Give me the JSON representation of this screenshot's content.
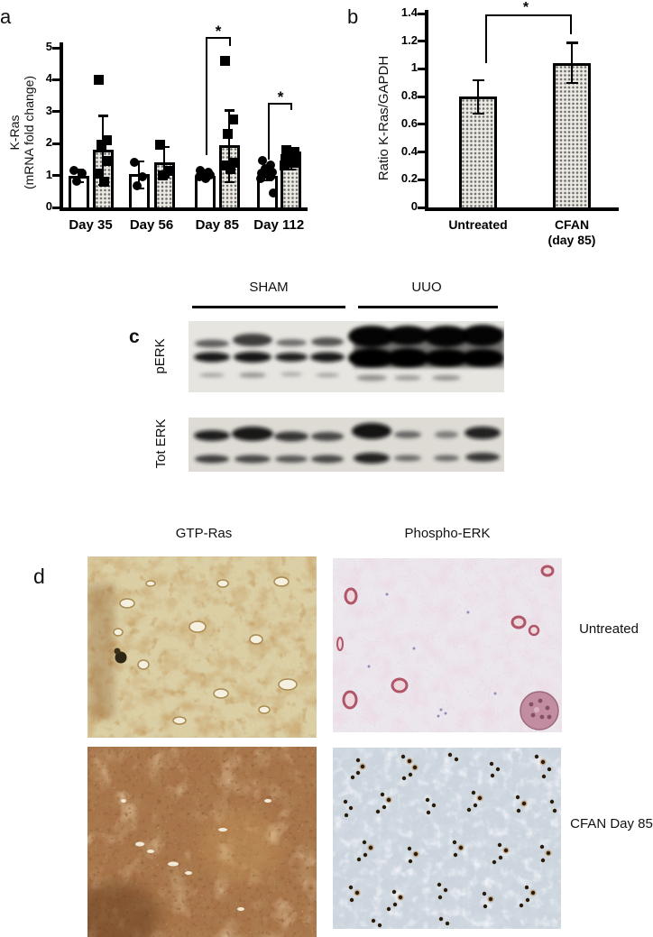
{
  "figure": {
    "panel_a": {
      "letter": "a"
    },
    "panel_b": {
      "letter": "b"
    },
    "panel_c": {
      "letter": "c",
      "group_labels": [
        "SHAM",
        "UUO"
      ],
      "blot_labels": [
        "pERK",
        "Tot ERK"
      ]
    },
    "panel_d": {
      "letter": "d",
      "column_headers": [
        "GTP-Ras",
        "Phospho-ERK"
      ],
      "row_labels": [
        "Untreated",
        "CFAN Day 85"
      ]
    }
  },
  "chart_data": [
    {
      "id": "panel_a",
      "type": "bar",
      "title": "",
      "ylabel": "K-Ras (mRNA fold change)",
      "ylabel_lines": [
        "K-Ras",
        "(mRNA fold change)"
      ],
      "ylim": [
        0,
        5
      ],
      "yticks": [
        0,
        1,
        2,
        3,
        4,
        5
      ],
      "categories": [
        "Day 35",
        "Day 56",
        "Day 85",
        "Day 112"
      ],
      "series": [
        {
          "name": "open bars (circles)",
          "style": "open",
          "marker": "circle",
          "means": [
            1.0,
            1.05,
            1.0,
            1.0
          ],
          "err_low": [
            0.8,
            0.6,
            0.88,
            0.85
          ],
          "err_high": [
            1.2,
            1.45,
            1.15,
            1.2
          ],
          "points": [
            [
              1.15,
              1.05,
              0.8
            ],
            [
              1.4,
              0.95,
              0.65
            ],
            [
              1.15,
              1.1,
              1.05,
              1.0,
              0.95,
              0.9
            ],
            [
              1.45,
              1.3,
              1.2,
              1.1,
              1.05,
              1.0,
              0.95,
              0.9,
              0.45
            ]
          ]
        },
        {
          "name": "stippled bars (squares)",
          "style": "stippled",
          "marker": "square",
          "means": [
            1.8,
            1.4,
            1.95,
            1.45
          ],
          "err_low": [
            0.72,
            0.95,
            0.8,
            1.2
          ],
          "err_high": [
            2.88,
            1.9,
            3.05,
            1.7
          ],
          "points": [
            [
              4.0,
              2.1,
              1.95,
              1.45,
              1.05,
              0.8
            ],
            [
              1.95,
              1.15,
              1.0
            ],
            [
              4.6,
              2.75,
              2.3,
              1.4,
              1.3,
              1.2
            ],
            [
              1.8,
              1.75,
              1.7,
              1.6,
              1.5,
              1.45,
              1.4,
              1.3
            ]
          ]
        }
      ],
      "significance": [
        {
          "category": "Day 85",
          "label": "*"
        },
        {
          "category": "Day 112",
          "label": "*"
        }
      ],
      "grid": false,
      "legend": false
    },
    {
      "id": "panel_b",
      "type": "bar",
      "title": "",
      "ylabel": "Ratio K-Ras/GAPDH",
      "ylim": [
        0,
        1.4
      ],
      "yticks": [
        0,
        0.2,
        0.4,
        0.6,
        0.8,
        1,
        1.2,
        1.4
      ],
      "categories": [
        "Untreated",
        "CFAN (day 85)"
      ],
      "category_display_lines": [
        [
          "Untreated"
        ],
        [
          "CFAN",
          "(day 85)"
        ]
      ],
      "values": [
        0.8,
        1.04
      ],
      "err_low": [
        0.68,
        0.9
      ],
      "err_high": [
        0.92,
        1.19
      ],
      "significance": [
        {
          "pair": [
            "Untreated",
            "CFAN (day 85)"
          ],
          "label": "*"
        }
      ],
      "grid": false,
      "legend": false
    }
  ]
}
